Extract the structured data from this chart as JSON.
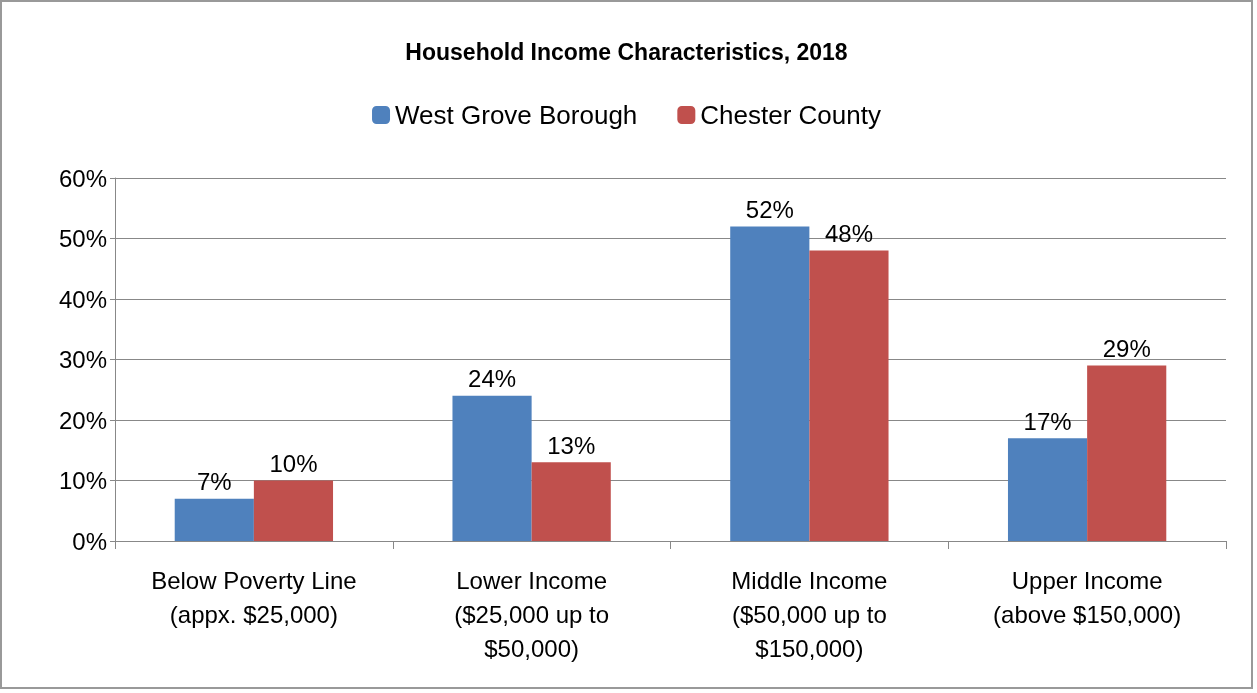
{
  "chart_data": {
    "type": "bar",
    "title": "Household Income Characteristics, 2018",
    "categories": [
      "Below Poverty Line\n(appx. $25,000)",
      "Lower Income\n($25,000 up to\n$50,000)",
      "Middle Income\n($50,000 up to\n$150,000)",
      "Upper Income\n(above $150,000)"
    ],
    "series": [
      {
        "name": "West Grove Borough",
        "color": "#4f81bd",
        "values": [
          7,
          24,
          52,
          17
        ],
        "value_labels": [
          "7%",
          "24%",
          "52%",
          "17%"
        ]
      },
      {
        "name": "Chester County",
        "color": "#c0504d",
        "values": [
          10,
          13,
          48,
          29
        ],
        "value_labels": [
          "10%",
          "13%",
          "48%",
          "29%"
        ]
      }
    ],
    "ylim": [
      0,
      60
    ],
    "yticks": [
      {
        "value": 0,
        "label": "0%"
      },
      {
        "value": 10,
        "label": "10%"
      },
      {
        "value": 20,
        "label": "20%"
      },
      {
        "value": 30,
        "label": "30%"
      },
      {
        "value": 40,
        "label": "40%"
      },
      {
        "value": 50,
        "label": "50%"
      },
      {
        "value": 60,
        "label": "60%"
      }
    ],
    "grid": "y",
    "legend": "top"
  }
}
